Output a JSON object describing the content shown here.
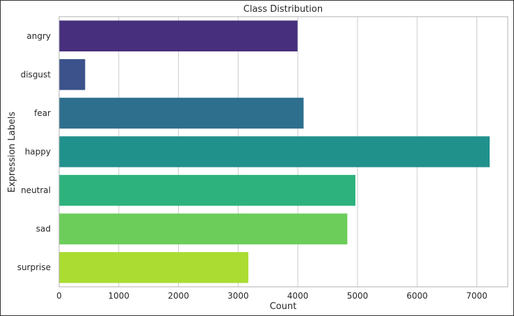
{
  "chart_data": {
    "type": "bar",
    "orientation": "horizontal",
    "title": "Class Distribution",
    "xlabel": "Count",
    "ylabel": "Expression Labels",
    "categories": [
      "angry",
      "disgust",
      "fear",
      "happy",
      "neutral",
      "sad",
      "surprise"
    ],
    "values": [
      3995,
      436,
      4097,
      7215,
      4965,
      4830,
      3171
    ],
    "xlim": [
      0,
      7518
    ],
    "xticks": [
      0,
      1000,
      2000,
      3000,
      4000,
      5000,
      6000,
      7000
    ],
    "grid": true,
    "colors": [
      "#472f7d",
      "#3b528b",
      "#2e6f8e",
      "#21918c",
      "#2db27d",
      "#6ccd5a",
      "#aadc32"
    ],
    "grid_color": "#cccccc",
    "frame_color": "#b0b0b0"
  }
}
